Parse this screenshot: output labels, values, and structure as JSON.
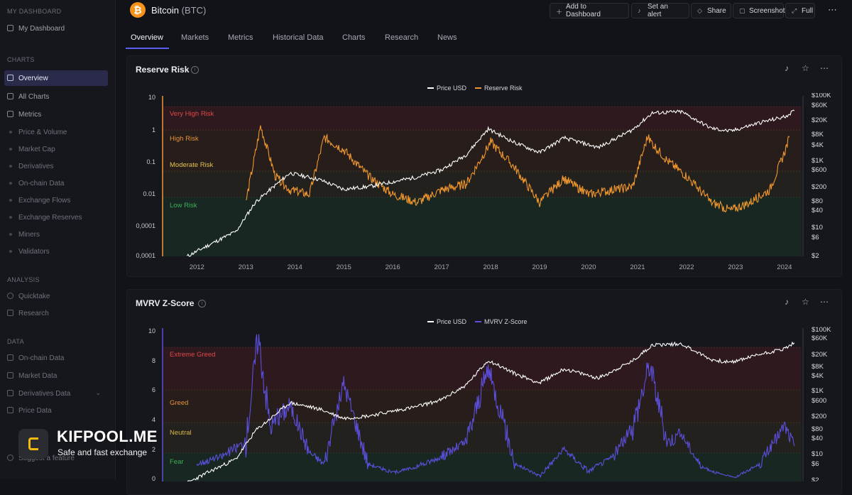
{
  "sidebar": {
    "sections": [
      {
        "label": "MY DASHBOARD"
      },
      {
        "label": "CHARTS"
      },
      {
        "label": "ANALYSIS"
      },
      {
        "label": "DATA"
      }
    ],
    "items": [
      {
        "label": "My Dashboard"
      },
      {
        "label": "Overview"
      },
      {
        "label": "All Charts"
      },
      {
        "label": "Metrics"
      },
      {
        "label": "Price & Volume"
      },
      {
        "label": "Market Cap"
      },
      {
        "label": "Derivatives"
      },
      {
        "label": "On-chain Data"
      },
      {
        "label": "Exchange Flows"
      },
      {
        "label": "Exchange Reserves"
      },
      {
        "label": "Miners"
      },
      {
        "label": "Validators"
      },
      {
        "label": "Quicktake"
      },
      {
        "label": "Research"
      },
      {
        "label": "On-chain Data"
      },
      {
        "label": "Market Data"
      },
      {
        "label": "Derivatives Data"
      },
      {
        "label": "Price Data"
      },
      {
        "label": "Suggest a feature"
      }
    ]
  },
  "header": {
    "coin_symbol": "₿",
    "coin_name": "Bitcoin",
    "ticker": "(BTC)",
    "buttons": [
      {
        "label": "Add to Dashboard",
        "icon": "plus-icon"
      },
      {
        "label": "Set an alert",
        "icon": "bell-icon"
      },
      {
        "label": "Share",
        "icon": "share-icon"
      },
      {
        "label": "Screenshot",
        "icon": "camera-icon"
      },
      {
        "label": "Full",
        "icon": "expand-icon"
      }
    ],
    "more": "⋯"
  },
  "tabs": [
    "Overview",
    "Markets",
    "Metrics",
    "Historical Data",
    "Charts",
    "Research",
    "News"
  ],
  "panels": [
    {
      "title": "Reserve Risk",
      "legend": [
        "Price USD",
        "Reserve Risk"
      ]
    },
    {
      "title": "MVRV Z-Score",
      "legend": [
        "Price USD",
        "MVRV Z-Score"
      ]
    }
  ],
  "watermark": {
    "name": "KIFPOOL.ME",
    "tagline": "Safe and fast exchange"
  },
  "chart_data": [
    {
      "type": "line",
      "title": "Reserve Risk",
      "x_ticks": [
        "2012",
        "2013",
        "2014",
        "2015",
        "2016",
        "2017",
        "2018",
        "2019",
        "2020",
        "2021",
        "2022",
        "2023",
        "2024"
      ],
      "y_left_ticks": [
        "10",
        "1",
        "0.1",
        "0.01",
        "0,0001",
        "0,0001"
      ],
      "y_right_ticks": [
        "$100K",
        "$60K",
        "$20K",
        "$8K",
        "$4K",
        "$1K",
        "$600",
        "$200",
        "$80",
        "$40",
        "$10",
        "$6",
        "$2"
      ],
      "zones": [
        "Very High Risk",
        "High Risk",
        "Moderate Risk",
        "Low Risk"
      ],
      "colors": {
        "price": "#ffffff",
        "metric": "#f0962e"
      },
      "series": [
        {
          "name": "Price USD",
          "x": [
            2011.8,
            2012.3,
            2012.8,
            2013.2,
            2013.9,
            2014.5,
            2015.0,
            2015.5,
            2016.5,
            2017.0,
            2017.5,
            2017.95,
            2018.5,
            2019.0,
            2019.5,
            2020.2,
            2020.9,
            2021.3,
            2021.9,
            2022.5,
            2022.9,
            2023.5,
            2024.0,
            2024.2
          ],
          "y": [
            2,
            5,
            12,
            100,
            800,
            500,
            250,
            300,
            600,
            1000,
            3000,
            19000,
            7000,
            3500,
            10000,
            5000,
            18000,
            60000,
            65000,
            20000,
            16000,
            30000,
            45000,
            70000
          ]
        },
        {
          "name": "Reserve Risk",
          "x": [
            2013.0,
            2013.3,
            2013.6,
            2013.9,
            2014.3,
            2014.6,
            2015.0,
            2015.5,
            2016.0,
            2016.5,
            2017.0,
            2017.5,
            2018.0,
            2018.5,
            2019.0,
            2019.5,
            2020.0,
            2020.5,
            2020.9,
            2021.2,
            2021.6,
            2022.0,
            2022.5,
            2022.9,
            2023.3,
            2023.7,
            2024.0,
            2024.1
          ],
          "y": [
            0.001,
            0.8,
            0.01,
            0.003,
            0.002,
            0.3,
            0.1,
            0.01,
            0.002,
            0.001,
            0.003,
            0.005,
            0.2,
            0.02,
            0.001,
            0.008,
            0.002,
            0.003,
            0.004,
            0.3,
            0.04,
            0.01,
            0.001,
            0.0005,
            0.001,
            0.003,
            0.08,
            0.3
          ]
        }
      ]
    },
    {
      "type": "line",
      "title": "MVRV Z-Score",
      "y_left_ticks": [
        "10",
        "8",
        "6",
        "4",
        "2",
        "0"
      ],
      "y_right_ticks": [
        "$100K",
        "$60K",
        "$20K",
        "$8K",
        "$4K",
        "$1K",
        "$600",
        "$200",
        "$80",
        "$40",
        "$10",
        "$6",
        "$2"
      ],
      "zones": [
        "Extreme Greed",
        "Greed",
        "Neutral",
        "Fear"
      ],
      "colors": {
        "price": "#ffffff",
        "metric": "#5b4fdc"
      },
      "series": [
        {
          "name": "Price USD",
          "x": [
            2011.8,
            2012.3,
            2012.8,
            2013.2,
            2013.9,
            2014.5,
            2015.0,
            2015.5,
            2016.5,
            2017.0,
            2017.5,
            2017.95,
            2018.5,
            2019.0,
            2019.5,
            2020.2,
            2020.9,
            2021.3,
            2021.9,
            2022.5,
            2022.9,
            2023.5,
            2024.0,
            2024.2
          ],
          "y": [
            2,
            5,
            12,
            100,
            800,
            500,
            250,
            300,
            600,
            1000,
            3000,
            19000,
            7000,
            3500,
            10000,
            5000,
            18000,
            60000,
            65000,
            20000,
            16000,
            30000,
            45000,
            70000
          ]
        },
        {
          "name": "MVRV Z-Score",
          "x": [
            2012.0,
            2012.5,
            2013.0,
            2013.25,
            2013.5,
            2013.9,
            2014.3,
            2014.6,
            2015.0,
            2015.5,
            2016.0,
            2016.5,
            2017.0,
            2017.5,
            2017.95,
            2018.5,
            2019.0,
            2019.5,
            2020.0,
            2020.5,
            2020.9,
            2021.25,
            2021.6,
            2021.9,
            2022.3,
            2022.7,
            2023.0,
            2023.5,
            2024.0,
            2024.2
          ],
          "y": [
            1.0,
            1.5,
            2.5,
            9.8,
            3.5,
            5.0,
            1.8,
            1.0,
            6.5,
            1.0,
            0.4,
            0.8,
            1.5,
            2.5,
            7.5,
            1.0,
            0.2,
            2.0,
            0.5,
            1.5,
            3.5,
            7.8,
            2.5,
            3.0,
            0.8,
            0.3,
            0.1,
            1.0,
            3.6,
            2.2
          ]
        }
      ]
    }
  ]
}
